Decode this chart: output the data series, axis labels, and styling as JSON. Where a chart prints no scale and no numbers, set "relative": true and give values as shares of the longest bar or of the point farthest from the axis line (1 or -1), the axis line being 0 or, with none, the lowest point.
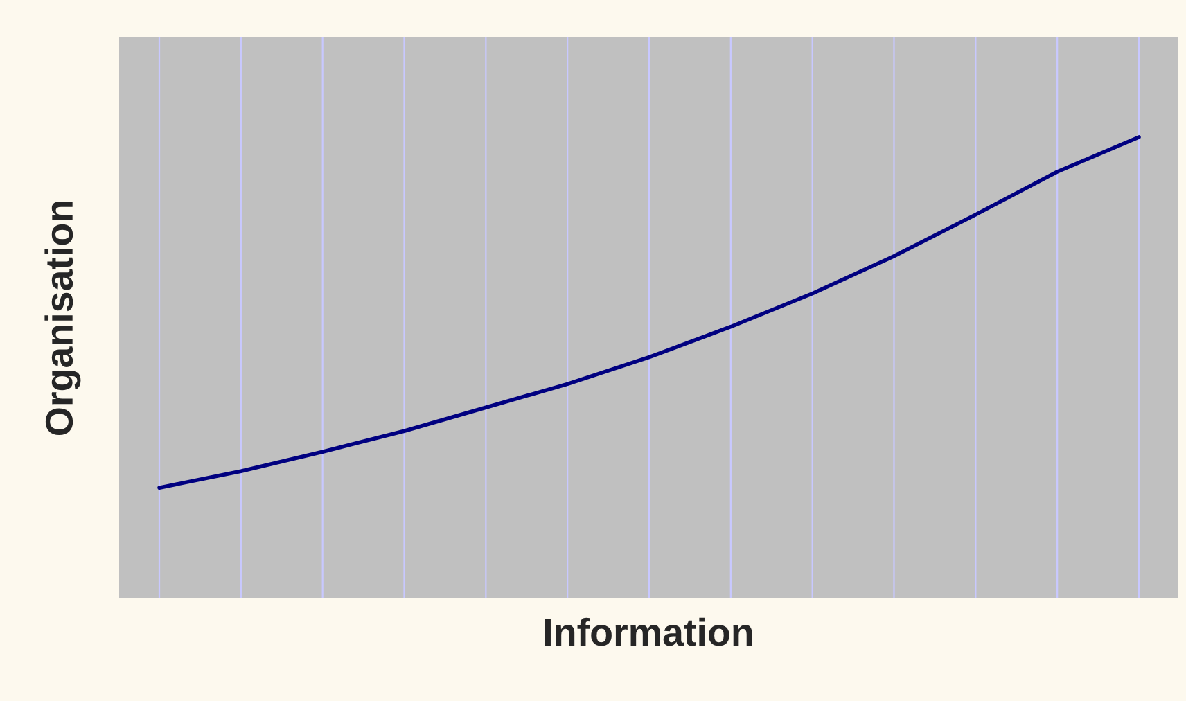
{
  "chart_data": {
    "type": "line",
    "relative": true,
    "xlabel": "Information",
    "ylabel": "Organisation",
    "categories": [
      null,
      null,
      null,
      null,
      null,
      null,
      null,
      null,
      null,
      null,
      null,
      null,
      null
    ],
    "series": [
      {
        "color": "#000080",
        "values": [
          0.24,
          0.276,
          0.318,
          0.363,
          0.414,
          0.465,
          0.523,
          0.589,
          0.661,
          0.742,
          0.832,
          0.925,
          1.0
        ]
      }
    ],
    "grid": "x",
    "tick_labels": false,
    "marker": "none",
    "line_style": "solid"
  }
}
